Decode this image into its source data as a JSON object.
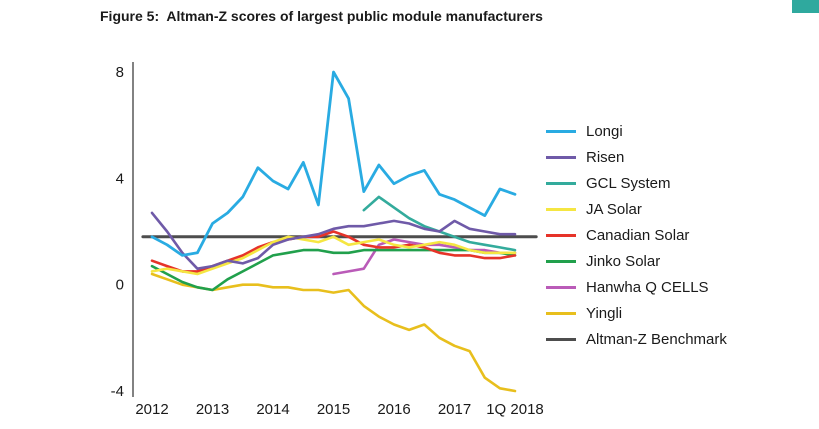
{
  "figure": {
    "title": "Figure 5:  Altman-Z scores of largest public module manufacturers"
  },
  "branding": {
    "corner_mark_color": "#2fa99e"
  },
  "chart_data": {
    "type": "line",
    "title": "Figure 5:  Altman-Z scores of largest public module manufacturers",
    "xlabel": "",
    "ylabel": "",
    "ylim": [
      -4,
      8
    ],
    "yticks": [
      "8",
      "4",
      "0",
      "-4"
    ],
    "ytick_values": [
      8,
      4,
      0,
      -4
    ],
    "x_base": 2012,
    "xticks": [
      {
        "v": 2012,
        "label": "2012"
      },
      {
        "v": 2013,
        "label": "2013"
      },
      {
        "v": 2014,
        "label": "2014"
      },
      {
        "v": 2015,
        "label": "2015"
      },
      {
        "v": 2016,
        "label": "2016"
      },
      {
        "v": 2017,
        "label": "2017"
      },
      {
        "v": 2018,
        "label": "1Q 2018"
      }
    ],
    "grid": false,
    "legend_position": "right",
    "axis_color": "#4d4d4d",
    "benchmark_value": 1.8,
    "series": [
      {
        "name": "Longi",
        "color": "#29abe2",
        "width": 2.8,
        "x_start": 2012,
        "dx": 0.25,
        "y": [
          1.8,
          1.5,
          1.1,
          1.2,
          2.3,
          2.7,
          3.3,
          4.4,
          3.9,
          3.6,
          4.6,
          3.0,
          8.0,
          7.0,
          3.5,
          4.5,
          3.8,
          4.1,
          4.3,
          3.4,
          3.2,
          2.9,
          2.6,
          3.6,
          3.4
        ]
      },
      {
        "name": "Risen",
        "color": "#6f5aa8",
        "width": 2.6,
        "x_start": 2012,
        "dx": 0.25,
        "y": [
          2.7,
          2.0,
          1.2,
          0.6,
          0.7,
          0.9,
          0.8,
          1.0,
          1.5,
          1.7,
          1.8,
          1.9,
          2.1,
          2.2,
          2.2,
          2.3,
          2.4,
          2.3,
          2.1,
          2.0,
          2.4,
          2.1,
          2.0,
          1.9,
          1.9
        ]
      },
      {
        "name": "GCL System",
        "color": "#33ab9c",
        "width": 2.6,
        "x_start": 2015.5,
        "dx": 0.25,
        "y": [
          2.8,
          3.3,
          2.9,
          2.5,
          2.2,
          2.0,
          1.8,
          1.6,
          1.5,
          1.4,
          1.3
        ]
      },
      {
        "name": "JA Solar",
        "color": "#f5e642",
        "width": 2.6,
        "x_start": 2012,
        "dx": 0.25,
        "y": [
          0.5,
          0.6,
          0.5,
          0.4,
          0.6,
          0.8,
          1.0,
          1.3,
          1.6,
          1.8,
          1.7,
          1.6,
          1.8,
          1.5,
          1.6,
          1.7,
          1.5,
          1.4,
          1.5,
          1.6,
          1.5,
          1.3,
          1.2,
          1.2,
          1.2
        ]
      },
      {
        "name": "Canadian Solar",
        "color": "#e63329",
        "width": 2.6,
        "x_start": 2012,
        "dx": 0.25,
        "y": [
          0.9,
          0.7,
          0.5,
          0.5,
          0.7,
          0.9,
          1.1,
          1.4,
          1.6,
          1.7,
          1.8,
          1.8,
          2.0,
          1.8,
          1.5,
          1.4,
          1.4,
          1.5,
          1.4,
          1.2,
          1.1,
          1.1,
          1.0,
          1.0,
          1.1
        ]
      },
      {
        "name": "Jinko Solar",
        "color": "#21a04c",
        "width": 2.6,
        "x_start": 2012,
        "dx": 0.25,
        "y": [
          0.7,
          0.4,
          0.1,
          -0.1,
          -0.2,
          0.2,
          0.5,
          0.8,
          1.1,
          1.2,
          1.3,
          1.3,
          1.2,
          1.2,
          1.3,
          1.3,
          1.3,
          1.3,
          1.3,
          1.3,
          1.3,
          1.3,
          1.2,
          1.2,
          1.1
        ]
      },
      {
        "name": "Hanwha Q CELLS",
        "color": "#ba5bb8",
        "width": 2.6,
        "x_start": 2015,
        "dx": 0.25,
        "y": [
          0.4,
          0.5,
          0.6,
          1.5,
          1.7,
          1.6,
          1.5,
          1.5,
          1.4,
          1.3,
          1.3,
          1.2,
          1.2
        ]
      },
      {
        "name": "Yingli",
        "color": "#e8bf1d",
        "width": 2.6,
        "x_start": 2012,
        "dx": 0.25,
        "y": [
          0.4,
          0.2,
          0.0,
          -0.1,
          -0.2,
          -0.1,
          0.0,
          0.0,
          -0.1,
          -0.1,
          -0.2,
          -0.2,
          -0.3,
          -0.2,
          -0.8,
          -1.2,
          -1.5,
          -1.7,
          -1.5,
          -2.0,
          -2.3,
          -2.5,
          -3.5,
          -3.9,
          -4.0
        ]
      },
      {
        "name": "Altman-Z Benchmark",
        "color": "#4d4d4d",
        "width": 3,
        "x": [
          2011.85,
          2018.35
        ],
        "y": [
          1.8,
          1.8
        ]
      }
    ]
  }
}
